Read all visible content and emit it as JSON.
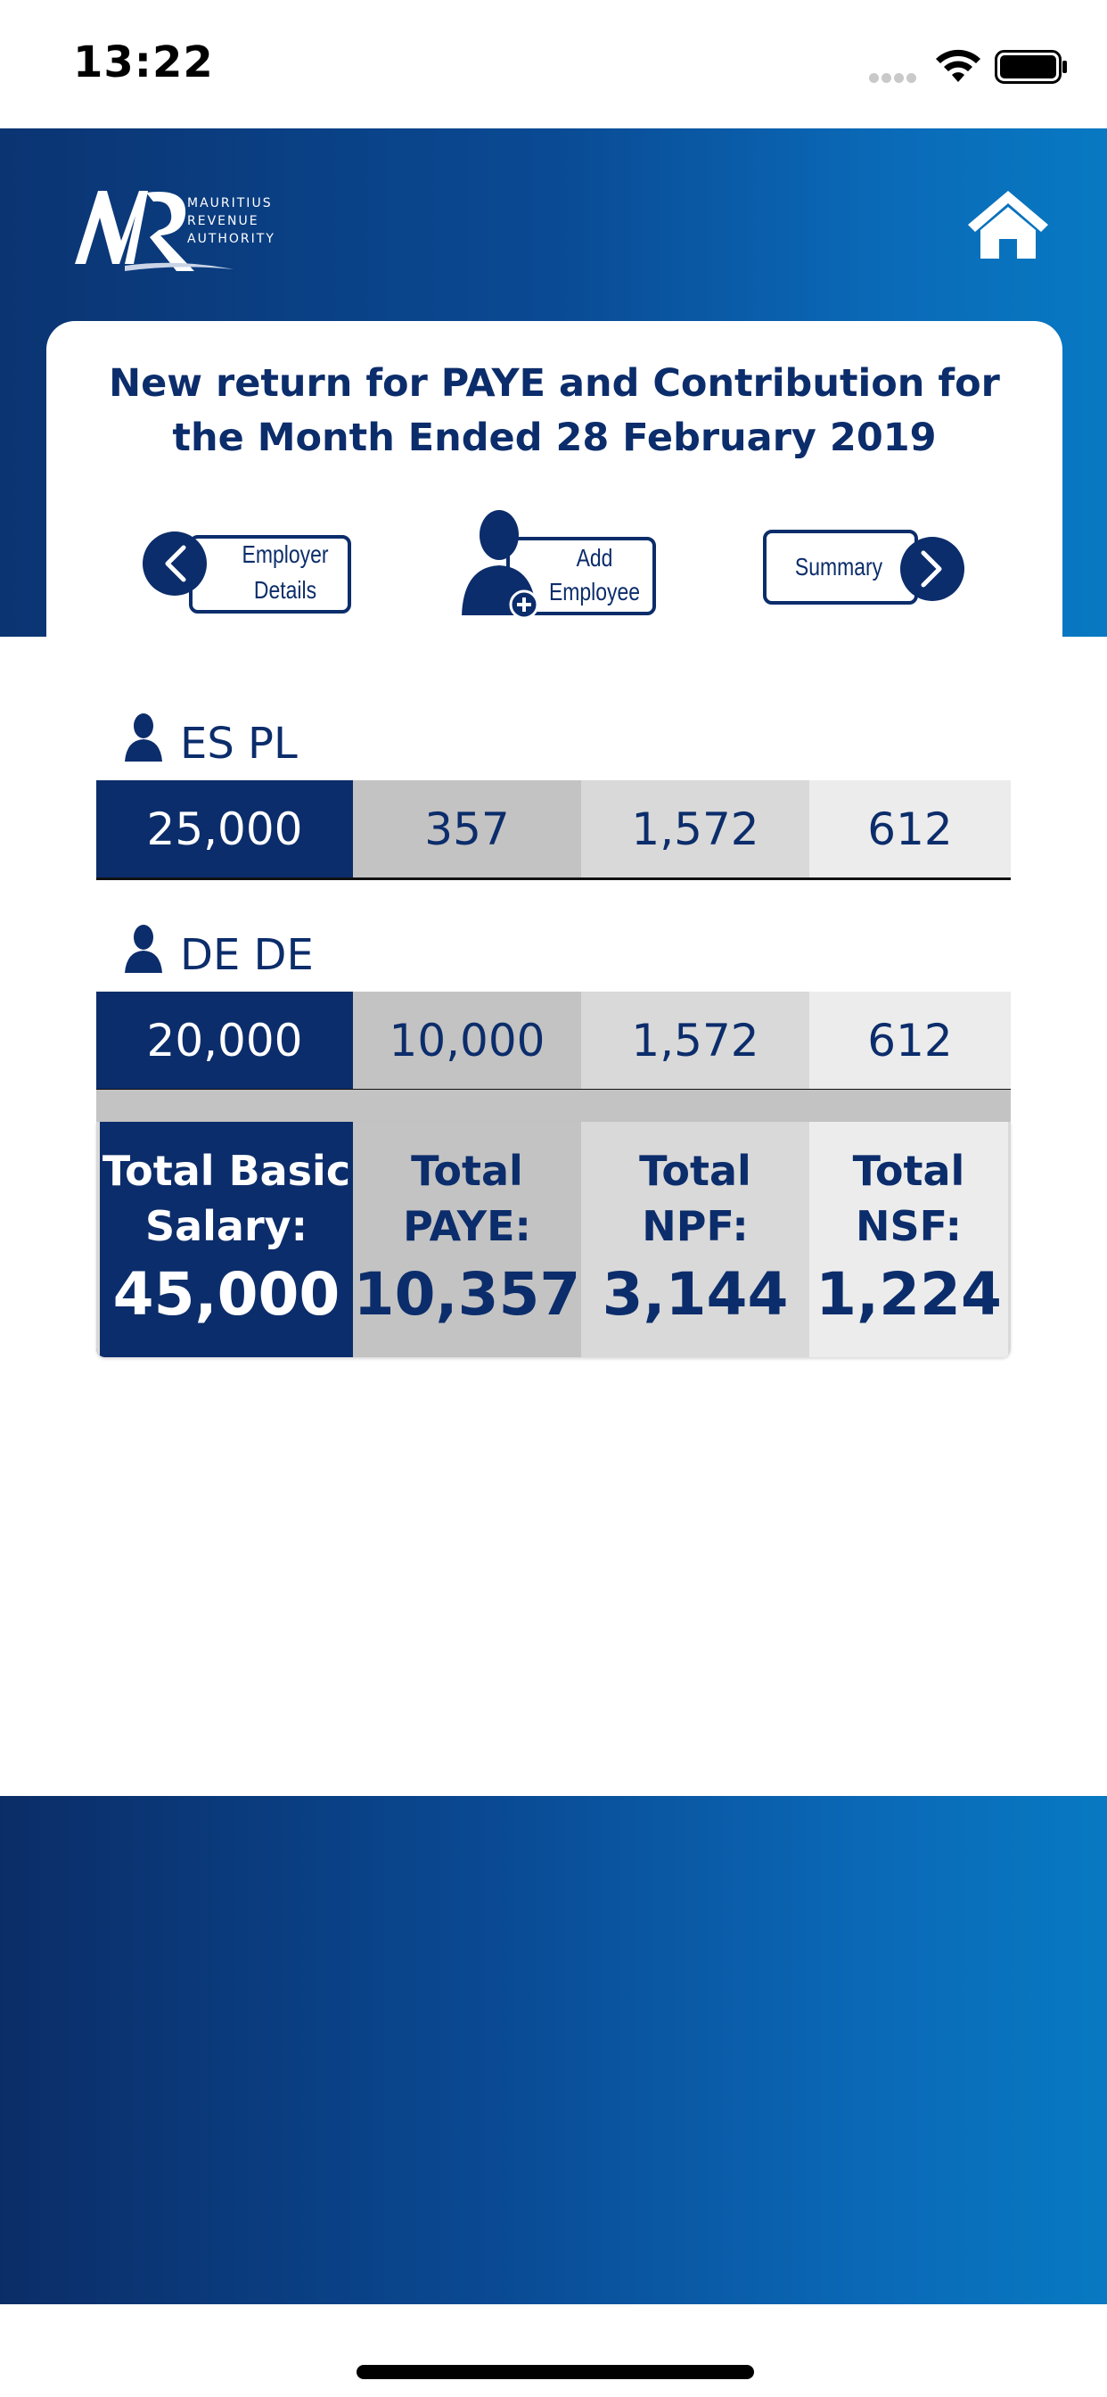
{
  "status_bar": {
    "time": "13:22"
  },
  "header": {
    "logo_text": [
      "MAURITIUS",
      "REVENUE",
      "AUTHORITY"
    ],
    "logo_mark": "MR",
    "home_icon": "home-icon"
  },
  "title": {
    "line1": "New return for PAYE and Contribution for",
    "line2": "the Month Ended 28 February 2019"
  },
  "nav": {
    "employer_line1": "Employer",
    "employer_line2": "Details",
    "add_line1": "Add",
    "add_line2": "Employee",
    "summary": "Summary"
  },
  "employees": [
    {
      "name": "ES PL",
      "basic_salary": "25,000",
      "paye": "357",
      "npf": "1,572",
      "nsf": "612"
    },
    {
      "name": "DE DE",
      "basic_salary": "20,000",
      "paye": "10,000",
      "npf": "1,572",
      "nsf": "612"
    }
  ],
  "totals": {
    "basic_label_1": "Total Basic",
    "basic_label_2": "Salary:",
    "basic_value": "45,000",
    "paye_label_1": "Total",
    "paye_label_2": "PAYE:",
    "paye_value": "10,357",
    "npf_label_1": "Total",
    "npf_label_2": "NPF:",
    "npf_value": "3,144",
    "nsf_label_1": "Total",
    "nsf_label_2": "NSF:",
    "nsf_value": "1,224"
  },
  "colors": {
    "navy": "#0c2d6b",
    "gradient_start": "#0b3472",
    "gradient_end": "#0879c2"
  }
}
